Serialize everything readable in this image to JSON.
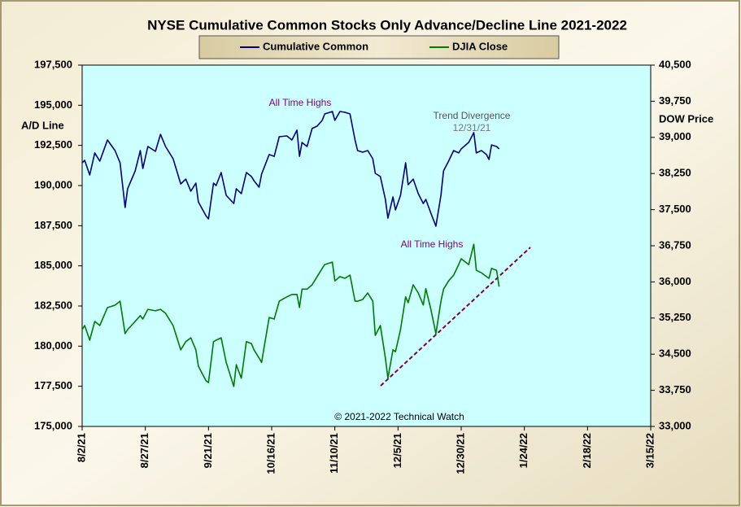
{
  "chart_data": {
    "type": "line",
    "title": "NYSE Cumulative  Common Stocks Only Advance/Decline  Line 2021-2022",
    "y_label": "A/D Line",
    "y2_label": "DOW Price",
    "annotations": [
      "All Time Highs",
      "Trend Divergence",
      "12/31/21",
      "All Time Highs",
      "© 2021-2022  Technical  Watch"
    ],
    "grid": false,
    "x": [
      "8/2/21",
      "8/3/21",
      "8/5/21",
      "8/7/21",
      "8/9/21",
      "8/12/21",
      "8/15/21",
      "8/17/21",
      "8/19/21",
      "8/20/21",
      "8/23/21",
      "8/25/21",
      "8/26/21",
      "8/28/21",
      "8/31/21",
      "9/2/21",
      "9/4/21",
      "9/7/21",
      "9/10/21",
      "9/12/21",
      "9/14/21",
      "9/16/21",
      "9/17/21",
      "9/20/21",
      "9/21/21",
      "9/23/21",
      "9/24/21",
      "9/26/21",
      "9/28/21",
      "10/1/21",
      "10/2/21",
      "10/4/21",
      "10/6/21",
      "10/8/21",
      "10/9/21",
      "10/11/21",
      "10/12/21",
      "10/15/21",
      "10/17/21",
      "10/19/21",
      "10/22/21",
      "10/24/21",
      "10/26/21",
      "10/27/21",
      "10/28/21",
      "10/30/21",
      "11/1/21",
      "11/3/21",
      "11/5/21",
      "11/6/21",
      "11/9/21",
      "11/10/21",
      "11/12/21",
      "11/14/21",
      "11/16/21",
      "11/18/21",
      "11/19/21",
      "11/21/21",
      "11/23/21",
      "11/25/21",
      "11/26/21",
      "11/28/21",
      "11/30/21",
      "12/1/21",
      "12/3/21",
      "12/4/21",
      "12/6/21",
      "12/8/21",
      "12/9/21",
      "12/11/21",
      "12/13/21",
      "12/15/21",
      "12/16/21",
      "12/18/21",
      "12/20/21",
      "12/22/21",
      "12/23/21",
      "12/25/21",
      "12/27/21",
      "12/29/21",
      "12/30/21",
      "1/2/22",
      "1/4/22",
      "1/5/22",
      "1/7/22",
      "1/9/22",
      "1/10/22",
      "1/11/22",
      "1/13/22",
      "1/14/22"
    ],
    "xlim": [
      "8/2/21",
      "3/15/22"
    ],
    "xticks": [
      "8/2/21",
      "8/27/21",
      "9/21/21",
      "10/16/21",
      "11/10/21",
      "12/5/21",
      "12/30/21",
      "1/24/22",
      "2/18/22",
      "3/15/22"
    ],
    "ylim": [
      175000,
      197500
    ],
    "yticks": [
      {
        "value": 175000,
        "label": "175,000"
      },
      {
        "value": 177500,
        "label": "177,500"
      },
      {
        "value": 180000,
        "label": "180,000"
      },
      {
        "value": 182500,
        "label": "182,500"
      },
      {
        "value": 185000,
        "label": "185,000"
      },
      {
        "value": 187500,
        "label": "187,500"
      },
      {
        "value": 190000,
        "label": "190,000"
      },
      {
        "value": 192500,
        "label": "192,500"
      },
      {
        "value": 195000,
        "label": "195,000"
      },
      {
        "value": 197500,
        "label": "197,500"
      }
    ],
    "y2lim": [
      33000,
      40500
    ],
    "y2ticks": [
      {
        "value": 33000,
        "label": "33,000"
      },
      {
        "value": 33750,
        "label": "33,750"
      },
      {
        "value": 34500,
        "label": "34,500"
      },
      {
        "value": 35250,
        "label": "35,250"
      },
      {
        "value": 36000,
        "label": "36,000"
      },
      {
        "value": 36750,
        "label": "36,750"
      },
      {
        "value": 37500,
        "label": "37,500"
      },
      {
        "value": 38250,
        "label": "38,250"
      },
      {
        "value": 39000,
        "label": "39,000"
      },
      {
        "value": 39750,
        "label": "39,750"
      },
      {
        "value": 40500,
        "label": "40,500"
      }
    ],
    "series": [
      {
        "name": "Cumulative Common",
        "color": "#000080",
        "values": [
          191420,
          191570,
          190660,
          192030,
          191520,
          192840,
          192180,
          191420,
          188630,
          189800,
          190910,
          192180,
          191060,
          192430,
          192130,
          193190,
          192430,
          191670,
          190100,
          190400,
          189650,
          190150,
          188980,
          188120,
          187920,
          190150,
          190000,
          190810,
          189390,
          188880,
          189800,
          189500,
          190810,
          190560,
          190300,
          189900,
          190710,
          191930,
          191820,
          193040,
          193090,
          192840,
          193450,
          191820,
          192680,
          192430,
          193550,
          193700,
          194060,
          194460,
          194610,
          194060,
          194610,
          194560,
          194460,
          192840,
          192180,
          192080,
          192180,
          191670,
          190760,
          190560,
          189140,
          187970,
          189290,
          188480,
          189390,
          191420,
          190050,
          190400,
          189500,
          188880,
          189140,
          188280,
          187470,
          189390,
          190910,
          191520,
          192180,
          192030,
          192280,
          192690,
          193300,
          192030,
          192180,
          191930,
          191620,
          192530,
          192430,
          192280
        ]
      },
      {
        "name": "DJIA Close",
        "color": "#007a00",
        "axis": "y2",
        "values": [
          35010,
          35095,
          34790,
          35180,
          35095,
          35466,
          35517,
          35600,
          34925,
          35010,
          35180,
          35300,
          35230,
          35430,
          35400,
          35430,
          35350,
          35095,
          34590,
          34760,
          34840,
          34590,
          34250,
          33950,
          33910,
          34760,
          34790,
          34840,
          34330,
          33830,
          34280,
          34000,
          34760,
          34720,
          34590,
          34420,
          34330,
          35260,
          35230,
          35600,
          35690,
          35740,
          35740,
          35470,
          35850,
          35850,
          35940,
          36110,
          36280,
          36360,
          36410,
          36020,
          36110,
          36075,
          36140,
          35600,
          35600,
          35635,
          35770,
          35600,
          34890,
          35095,
          34420,
          34000,
          34590,
          34550,
          35010,
          35690,
          35570,
          35940,
          35770,
          35520,
          35860,
          35430,
          34925,
          35600,
          35850,
          36020,
          36140,
          36360,
          36480,
          36360,
          36780,
          36240,
          36190,
          36110,
          36075,
          36280,
          36240,
          35900
        ]
      }
    ]
  }
}
